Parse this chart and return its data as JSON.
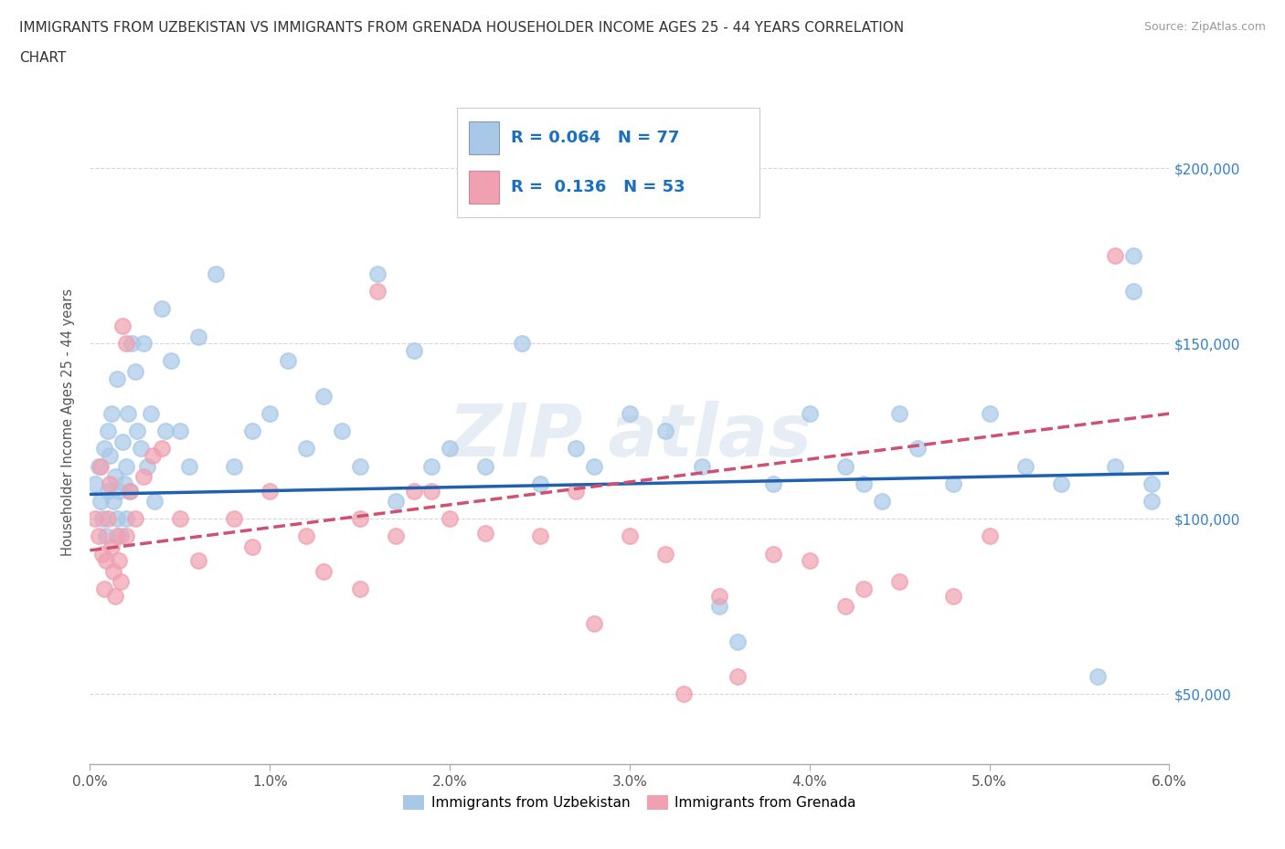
{
  "title_line1": "IMMIGRANTS FROM UZBEKISTAN VS IMMIGRANTS FROM GRENADA HOUSEHOLDER INCOME AGES 25 - 44 YEARS CORRELATION",
  "title_line2": "CHART",
  "source_text": "Source: ZipAtlas.com",
  "ylabel": "Householder Income Ages 25 - 44 years",
  "xlim": [
    0.0,
    0.06
  ],
  "ylim": [
    30000,
    225000
  ],
  "xtick_labels": [
    "0.0%",
    "1.0%",
    "2.0%",
    "3.0%",
    "4.0%",
    "5.0%",
    "6.0%"
  ],
  "xtick_vals": [
    0.0,
    0.01,
    0.02,
    0.03,
    0.04,
    0.05,
    0.06
  ],
  "ytick_vals": [
    50000,
    100000,
    150000,
    200000
  ],
  "ytick_labels": [
    "$50,000",
    "$100,000",
    "$150,000",
    "$200,000"
  ],
  "color_uzbekistan": "#A8C8E8",
  "color_grenada": "#F0A0B0",
  "line_color_uzbekistan": "#2060B0",
  "line_color_grenada": "#D05070",
  "R_uzbekistan": 0.064,
  "N_uzbekistan": 77,
  "R_grenada": 0.136,
  "N_grenada": 53,
  "legend_R_color": "#1A6FBF",
  "uz_line_y0": 107000,
  "uz_line_y1": 113000,
  "gr_line_y0": 91000,
  "gr_line_y1": 130000,
  "uzbekistan_x": [
    0.0003,
    0.0005,
    0.0006,
    0.0007,
    0.0008,
    0.0009,
    0.001,
    0.001,
    0.0011,
    0.0012,
    0.0013,
    0.0014,
    0.0015,
    0.0015,
    0.0016,
    0.0017,
    0.0018,
    0.0019,
    0.002,
    0.002,
    0.0021,
    0.0022,
    0.0023,
    0.0025,
    0.0026,
    0.0028,
    0.003,
    0.0032,
    0.0034,
    0.0036,
    0.004,
    0.0042,
    0.0045,
    0.005,
    0.0055,
    0.006,
    0.007,
    0.008,
    0.009,
    0.01,
    0.011,
    0.012,
    0.013,
    0.014,
    0.015,
    0.016,
    0.017,
    0.018,
    0.019,
    0.02,
    0.022,
    0.024,
    0.025,
    0.027,
    0.028,
    0.03,
    0.032,
    0.034,
    0.035,
    0.036,
    0.038,
    0.04,
    0.042,
    0.043,
    0.044,
    0.045,
    0.046,
    0.048,
    0.05,
    0.052,
    0.054,
    0.056,
    0.057,
    0.058,
    0.058,
    0.059,
    0.059
  ],
  "uzbekistan_y": [
    110000,
    115000,
    105000,
    100000,
    120000,
    95000,
    125000,
    108000,
    118000,
    130000,
    105000,
    112000,
    140000,
    100000,
    108000,
    95000,
    122000,
    110000,
    115000,
    100000,
    130000,
    108000,
    150000,
    142000,
    125000,
    120000,
    150000,
    115000,
    130000,
    105000,
    160000,
    125000,
    145000,
    125000,
    115000,
    152000,
    170000,
    115000,
    125000,
    130000,
    145000,
    120000,
    135000,
    125000,
    115000,
    170000,
    105000,
    148000,
    115000,
    120000,
    115000,
    150000,
    110000,
    120000,
    115000,
    130000,
    125000,
    115000,
    75000,
    65000,
    110000,
    130000,
    115000,
    110000,
    105000,
    130000,
    120000,
    110000,
    130000,
    115000,
    110000,
    55000,
    115000,
    175000,
    165000,
    105000,
    110000
  ],
  "grenada_x": [
    0.0003,
    0.0005,
    0.0006,
    0.0007,
    0.0008,
    0.0009,
    0.001,
    0.0011,
    0.0012,
    0.0013,
    0.0014,
    0.0015,
    0.0016,
    0.0017,
    0.0018,
    0.002,
    0.002,
    0.0022,
    0.0025,
    0.003,
    0.0035,
    0.004,
    0.005,
    0.006,
    0.008,
    0.009,
    0.01,
    0.012,
    0.013,
    0.015,
    0.017,
    0.018,
    0.02,
    0.022,
    0.025,
    0.027,
    0.03,
    0.032,
    0.035,
    0.038,
    0.04,
    0.042,
    0.045,
    0.048,
    0.05,
    0.015,
    0.016,
    0.019,
    0.028,
    0.033,
    0.036,
    0.043,
    0.057
  ],
  "grenada_y": [
    100000,
    95000,
    115000,
    90000,
    80000,
    88000,
    100000,
    110000,
    92000,
    85000,
    78000,
    95000,
    88000,
    82000,
    155000,
    150000,
    95000,
    108000,
    100000,
    112000,
    118000,
    120000,
    100000,
    88000,
    100000,
    92000,
    108000,
    95000,
    85000,
    80000,
    95000,
    108000,
    100000,
    96000,
    95000,
    108000,
    95000,
    90000,
    78000,
    90000,
    88000,
    75000,
    82000,
    78000,
    95000,
    100000,
    165000,
    108000,
    70000,
    50000,
    55000,
    80000,
    175000
  ]
}
